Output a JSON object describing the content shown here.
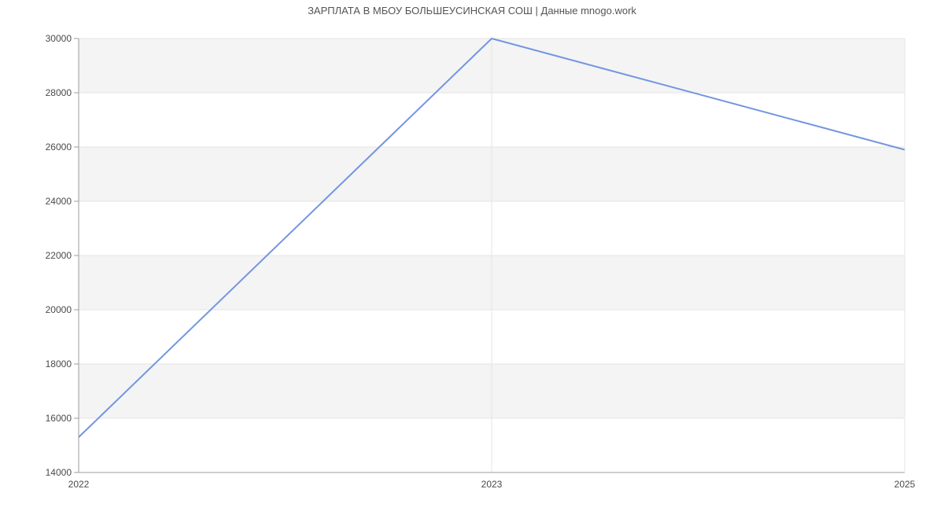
{
  "page": {
    "background": "#ffffff"
  },
  "chart_data": {
    "type": "line",
    "title": "ЗАРПЛАТА В МБОУ БОЛЬШЕУСИНСКАЯ СОШ | Данные mnogo.work",
    "categories": [
      "2022",
      "2023",
      "2025"
    ],
    "series": [
      {
        "name": "salary",
        "values": [
          15300,
          30000,
          25900
        ]
      }
    ],
    "xlabel": "",
    "ylabel": "",
    "ylim": [
      14000,
      30000
    ],
    "ytick_step": 2000,
    "ytick_labels": [
      "14000",
      "16000",
      "18000",
      "20000",
      "22000",
      "24000",
      "26000",
      "28000",
      "30000"
    ],
    "grid": true,
    "legend_position": "none",
    "band_fill_order": "top-band-shaded-alternating",
    "colors": {
      "line": "#7396e0",
      "band": "#f4f4f4",
      "gridline": "#e4e4e4",
      "axis": "#9e9e9e",
      "tick_label": "#4a4a4a",
      "title": "#545454"
    }
  }
}
